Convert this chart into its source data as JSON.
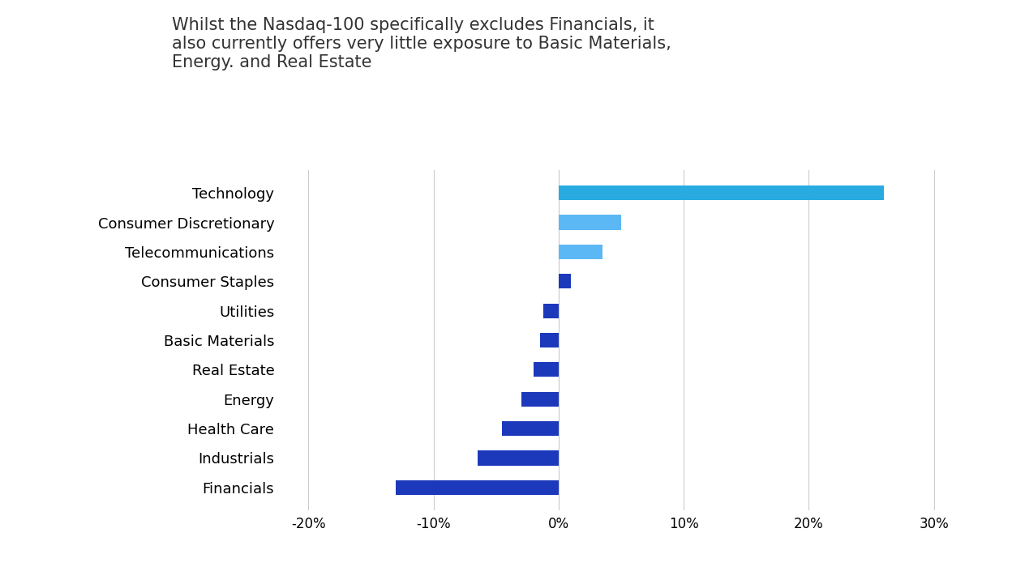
{
  "title": "Whilst the Nasdaq-100 specifically excludes Financials, it\nalso currently offers very little exposure to Basic Materials,\nEnergy. and Real Estate",
  "categories": [
    "Technology",
    "Consumer Discretionary",
    "Telecommunications",
    "Consumer Staples",
    "Utilities",
    "Basic Materials",
    "Real Estate",
    "Energy",
    "Health Care",
    "Industrials",
    "Financials"
  ],
  "values": [
    26.0,
    5.0,
    3.5,
    1.0,
    -1.2,
    -1.5,
    -2.0,
    -3.0,
    -4.5,
    -6.5,
    -13.0
  ],
  "colors": [
    "#29ABE2",
    "#5BB8F5",
    "#5CB8F5",
    "#1C39BB",
    "#1C39BB",
    "#1C39BB",
    "#1C39BB",
    "#1C39BB",
    "#1C39BB",
    "#1C39BB",
    "#1C39BB"
  ],
  "xlim": [
    -22,
    33
  ],
  "xticks": [
    -20,
    -10,
    0,
    10,
    20,
    30
  ],
  "xtick_labels": [
    "-20%",
    "-10%",
    "0%",
    "10%",
    "20%",
    "30%"
  ],
  "background_color": "#ffffff",
  "grid_color": "#cccccc",
  "title_fontsize": 15,
  "label_fontsize": 13,
  "tick_fontsize": 12,
  "bar_height": 0.5
}
